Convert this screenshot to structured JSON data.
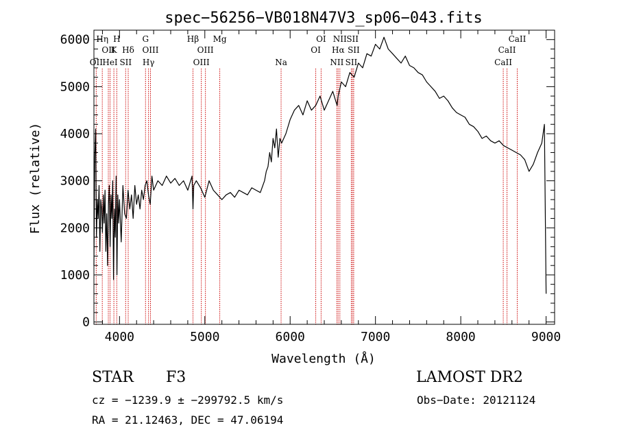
{
  "chart_data": {
    "type": "line",
    "title": "spec−56256−VB018N47V3_sp06−043.fits",
    "xlabel": "Wavelength (Å)",
    "ylabel": "Flux (relative)",
    "xlim": [
      3700,
      9100
    ],
    "ylim": [
      -50,
      6200
    ],
    "xticks": [
      4000,
      5000,
      6000,
      7000,
      8000,
      9000
    ],
    "yticks": [
      0,
      1000,
      2000,
      3000,
      4000,
      5000,
      6000
    ],
    "line_color": "#000000",
    "marker_color": "#cc0000",
    "series": [
      {
        "x": [
          3700,
          3710,
          3720,
          3730,
          3740,
          3750,
          3760,
          3770,
          3780,
          3790,
          3800,
          3810,
          3820,
          3830,
          3840,
          3850,
          3860,
          3870,
          3880,
          3890,
          3900,
          3910,
          3920,
          3930,
          3940,
          3950,
          3960,
          3970,
          3980,
          3990,
          4000,
          4020,
          4040,
          4060,
          4080,
          4100,
          4120,
          4140,
          4160,
          4180,
          4200,
          4220,
          4240,
          4260,
          4280,
          4300,
          4320,
          4340,
          4360,
          4380,
          4400,
          4450,
          4500,
          4550,
          4600,
          4650,
          4700,
          4750,
          4800,
          4850,
          4861,
          4870,
          4900,
          4950,
          5000,
          5050,
          5100,
          5150,
          5200,
          5250,
          5300,
          5350,
          5400,
          5450,
          5500,
          5550,
          5600,
          5650,
          5700,
          5720,
          5740,
          5760,
          5780,
          5800,
          5820,
          5840,
          5860,
          5880,
          5900,
          5950,
          6000,
          6050,
          6100,
          6150,
          6200,
          6250,
          6300,
          6350,
          6400,
          6450,
          6500,
          6550,
          6563,
          6600,
          6650,
          6700,
          6750,
          6800,
          6850,
          6900,
          6950,
          7000,
          7050,
          7100,
          7150,
          7200,
          7250,
          7300,
          7350,
          7400,
          7450,
          7500,
          7550,
          7600,
          7650,
          7700,
          7750,
          7800,
          7850,
          7900,
          7950,
          8000,
          8050,
          8100,
          8150,
          8200,
          8250,
          8300,
          8350,
          8400,
          8450,
          8500,
          8550,
          8600,
          8650,
          8700,
          8750,
          8800,
          8850,
          8900,
          8950,
          8980,
          9000
        ],
        "y": [
          1200,
          3500,
          4100,
          1800,
          2600,
          2200,
          2900,
          1500,
          2600,
          2400,
          1900,
          2700,
          2100,
          2800,
          1500,
          2300,
          1200,
          2500,
          2900,
          1600,
          2700,
          2200,
          3000,
          900,
          2400,
          1800,
          3100,
          1000,
          2700,
          2100,
          2600,
          1700,
          2900,
          2300,
          2200,
          2800,
          2400,
          2700,
          2200,
          2900,
          2500,
          2700,
          2400,
          2800,
          2600,
          2900,
          3000,
          2700,
          2500,
          3100,
          2800,
          3000,
          2900,
          3100,
          2950,
          3050,
          2900,
          3000,
          2800,
          3100,
          2400,
          2900,
          3000,
          2850,
          2650,
          3000,
          2800,
          2700,
          2600,
          2700,
          2750,
          2650,
          2800,
          2750,
          2700,
          2850,
          2800,
          2750,
          3000,
          3200,
          3300,
          3600,
          3400,
          3900,
          3700,
          4100,
          3500,
          3900,
          3800,
          4000,
          4300,
          4500,
          4600,
          4400,
          4700,
          4500,
          4600,
          4800,
          4500,
          4700,
          4900,
          4600,
          4800,
          5100,
          5000,
          5300,
          5200,
          5500,
          5400,
          5700,
          5650,
          5900,
          5800,
          6050,
          5800,
          5700,
          5600,
          5500,
          5650,
          5450,
          5400,
          5300,
          5250,
          5100,
          5000,
          4900,
          4750,
          4800,
          4700,
          4550,
          4450,
          4400,
          4350,
          4200,
          4150,
          4050,
          3900,
          3950,
          3850,
          3800,
          3850,
          3750,
          3700,
          3650,
          3600,
          3550,
          3450,
          3200,
          3350,
          3600,
          3800,
          4200,
          600
        ]
      }
    ],
    "line_markers": [
      {
        "x": 3727,
        "row": 2,
        "label": "OII"
      },
      {
        "x": 3798,
        "row": 0,
        "label": "Hη"
      },
      {
        "x": 3869,
        "row": 1,
        "label": "OII"
      },
      {
        "x": 3889,
        "row": 2,
        "label": "HeI"
      },
      {
        "x": 3934,
        "row": 1,
        "label": "K"
      },
      {
        "x": 3968,
        "row": 0,
        "label": "H"
      },
      {
        "x": 4072,
        "row": 2,
        "label": "SII"
      },
      {
        "x": 4102,
        "row": 1,
        "label": "Hδ"
      },
      {
        "x": 4305,
        "row": 0,
        "label": "G"
      },
      {
        "x": 4340,
        "row": 2,
        "label": "Hγ"
      },
      {
        "x": 4363,
        "row": 1,
        "label": "OIII"
      },
      {
        "x": 4861,
        "row": 0,
        "label": "Hβ"
      },
      {
        "x": 4959,
        "row": 2,
        "label": "OIII"
      },
      {
        "x": 5007,
        "row": 1,
        "label": "OIII"
      },
      {
        "x": 5175,
        "row": 0,
        "label": "Mg"
      },
      {
        "x": 5894,
        "row": 2,
        "label": "Na"
      },
      {
        "x": 6300,
        "row": 1,
        "label": "OI"
      },
      {
        "x": 6363,
        "row": 0,
        "label": "OI"
      },
      {
        "x": 6548,
        "row": 2,
        "label": "NII"
      },
      {
        "x": 6563,
        "row": 1,
        "label": "Hα"
      },
      {
        "x": 6583,
        "row": 0,
        "label": "NII"
      },
      {
        "x": 6717,
        "row": 2,
        "label": "SII"
      },
      {
        "x": 6731,
        "row": 0,
        "label": "SII"
      },
      {
        "x": 6745,
        "row": 1,
        "label": "SII"
      },
      {
        "x": 8498,
        "row": 2,
        "label": "CaII"
      },
      {
        "x": 8542,
        "row": 1,
        "label": "CaII"
      },
      {
        "x": 8662,
        "row": 0,
        "label": "CaII"
      }
    ]
  },
  "info": {
    "class_label": "STAR",
    "subclass_label": "F3",
    "survey": "LAMOST DR2",
    "cz": "cz = −1239.9 ± −299792.5 km/s",
    "obs_date": "Obs−Date: 20121124",
    "coords": "RA =  21.12463, DEC =  47.06194"
  }
}
